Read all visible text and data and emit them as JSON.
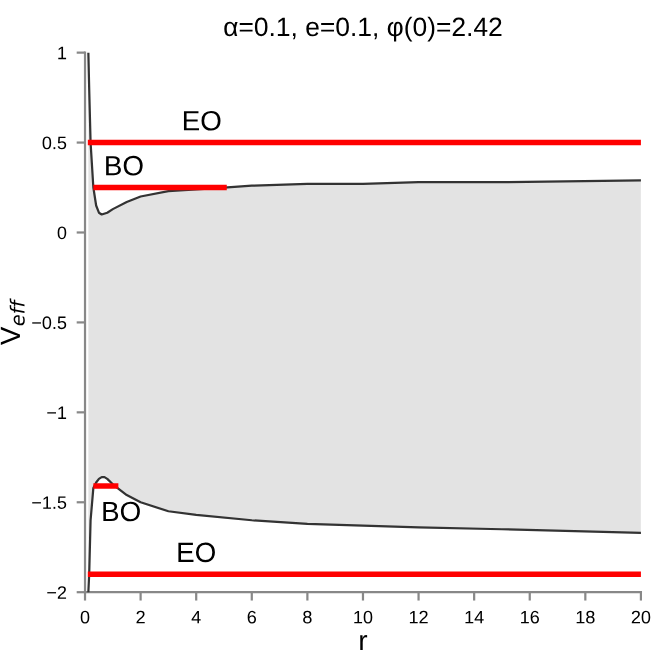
{
  "chart_data": {
    "type": "line",
    "title": "α=0.1, e=0.1, φ(0)=2.42",
    "xlabel": "r",
    "ylabel": "V$_{eff}$",
    "xlim": [
      0,
      20
    ],
    "ylim": [
      -2,
      1
    ],
    "xticks": [
      0,
      2,
      4,
      6,
      8,
      10,
      12,
      14,
      16,
      18,
      20
    ],
    "yticks": [
      -2,
      -1.5,
      -1,
      -0.5,
      0,
      0.5,
      1
    ],
    "series": [
      {
        "color": "#333333",
        "x": [
          0.12,
          0.15,
          0.2,
          0.3,
          0.4,
          0.5,
          0.6,
          0.8,
          1,
          1.5,
          2,
          3,
          4,
          5,
          6,
          8,
          10,
          12,
          15,
          20
        ],
        "values": [
          1,
          0.8,
          0.5,
          0.25,
          0.15,
          0.11,
          0.1,
          0.11,
          0.13,
          0.17,
          0.2,
          0.23,
          0.24,
          0.25,
          0.26,
          0.27,
          0.27,
          0.28,
          0.28,
          0.29
        ],
        "lower": [
          -2,
          -1.9,
          -1.6,
          -1.42,
          -1.39,
          -1.37,
          -1.36,
          -1.37,
          -1.4,
          -1.46,
          -1.5,
          -1.55,
          -1.57,
          -1.59,
          -1.6,
          -1.62,
          -1.63,
          -1.64,
          -1.65,
          -1.67
        ],
        "upper": [
          1,
          0.8,
          0.5,
          0.25,
          0.15,
          0.11,
          0.1,
          0.11,
          0.13,
          0.17,
          0.2,
          0.23,
          0.24,
          0.25,
          0.26,
          0.27,
          0.27,
          0.28,
          0.28,
          0.29
        ]
      },
      {
        "color": "#333333",
        "x": [
          0.12,
          0.15,
          0.2,
          0.3,
          0.4,
          0.5,
          0.6,
          0.7,
          0.8,
          1,
          1.5,
          2,
          3,
          4,
          6,
          8,
          10,
          12,
          15,
          20
        ],
        "values": [
          -2,
          -1.9,
          -1.6,
          -1.42,
          -1.39,
          -1.37,
          -1.36,
          -1.36,
          -1.37,
          -1.4,
          -1.46,
          -1.5,
          -1.55,
          -1.57,
          -1.6,
          -1.62,
          -1.63,
          -1.64,
          -1.65,
          -1.67
        ]
      },
      {
        "color": "#ff0000",
        "x": [
          0.2,
          20
        ],
        "values": [
          0.5,
          0.5
        ]
      },
      {
        "color": "#ff0000",
        "x": [
          0.4,
          5
        ],
        "values": [
          0.25,
          0.25
        ]
      },
      {
        "color": "#ff0000",
        "x": [
          0.4,
          1.1
        ],
        "values": [
          -1.41,
          -1.41
        ]
      },
      {
        "color": "#ff0000",
        "x": [
          0.2,
          20
        ],
        "values": [
          -1.9,
          -1.9
        ]
      }
    ],
    "annotations": [
      {
        "text": "EO",
        "x": 4.2,
        "y": 0.5
      },
      {
        "text": "BO",
        "x": 1.4,
        "y": 0.25
      },
      {
        "text": "BO",
        "x": 1.3,
        "y": -1.41
      },
      {
        "text": "EO",
        "x": 4.0,
        "y": -1.9
      }
    ],
    "grid": false,
    "legend": false,
    "marker": "none",
    "line_style": "solid"
  }
}
